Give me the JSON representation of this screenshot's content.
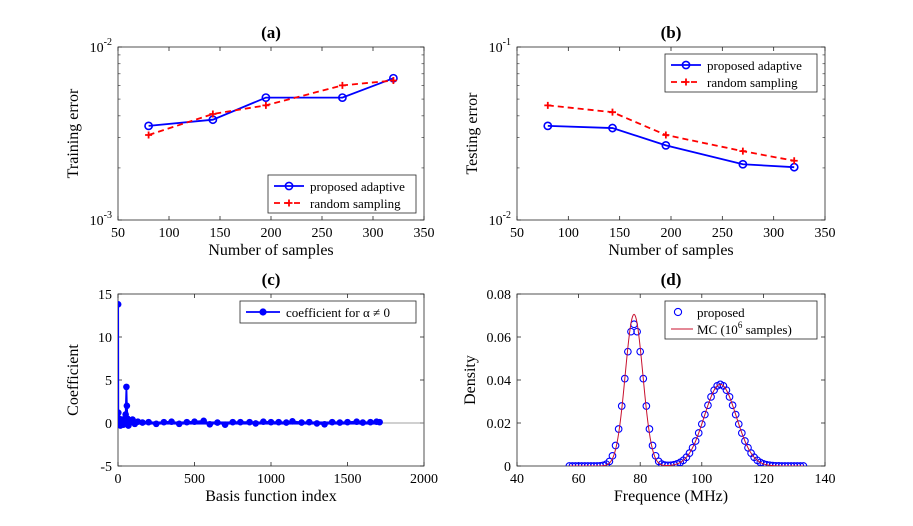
{
  "chart_data": [
    {
      "id": "a",
      "type": "line",
      "title": "(a)",
      "xlabel": "Number of samples",
      "ylabel": "Training error",
      "xlim": [
        50,
        350
      ],
      "ylim": [
        0.001,
        0.01
      ],
      "yscale": "log",
      "xticks": [
        50,
        100,
        150,
        200,
        250,
        300,
        350
      ],
      "yticks": [
        {
          "base": "10",
          "exp": "-3",
          "value": 0.001
        },
        {
          "base": "10",
          "exp": "-2",
          "value": 0.01
        }
      ],
      "legend_position": "bottom-right",
      "series": [
        {
          "name": "proposed adaptive",
          "x": [
            80,
            143,
            195,
            270,
            320
          ],
          "y": [
            0.0035,
            0.0038,
            0.0051,
            0.0051,
            0.0066
          ],
          "color": "#0000ff",
          "style": "solid",
          "marker": "circle"
        },
        {
          "name": "random sampling",
          "x": [
            80,
            143,
            195,
            270,
            320
          ],
          "y": [
            0.0031,
            0.0041,
            0.0046,
            0.006,
            0.0064
          ],
          "color": "#ff0000",
          "style": "dashed",
          "marker": "plus"
        }
      ]
    },
    {
      "id": "b",
      "type": "line",
      "title": "(b)",
      "xlabel": "Number of samples",
      "ylabel": "Testing error",
      "xlim": [
        50,
        350
      ],
      "ylim": [
        0.01,
        0.1
      ],
      "yscale": "log",
      "xticks": [
        50,
        100,
        150,
        200,
        250,
        300,
        350
      ],
      "yticks": [
        {
          "base": "10",
          "exp": "-2",
          "value": 0.01
        },
        {
          "base": "10",
          "exp": "-1",
          "value": 0.1
        }
      ],
      "legend_position": "top-right",
      "series": [
        {
          "name": "proposed adaptive",
          "x": [
            80,
            143,
            195,
            270,
            320
          ],
          "y": [
            0.035,
            0.034,
            0.027,
            0.021,
            0.0202
          ],
          "color": "#0000ff",
          "style": "solid",
          "marker": "circle"
        },
        {
          "name": "random sampling",
          "x": [
            80,
            143,
            195,
            270,
            320
          ],
          "y": [
            0.046,
            0.042,
            0.031,
            0.025,
            0.022
          ],
          "color": "#ff0000",
          "style": "dashed",
          "marker": "plus"
        }
      ]
    },
    {
      "id": "c",
      "type": "scatter",
      "title": "(c)",
      "xlabel": "Basis function index",
      "ylabel": "Coefficient",
      "xlim": [
        0,
        2000
      ],
      "ylim": [
        -5,
        15
      ],
      "xticks": [
        0,
        500,
        1000,
        1500,
        2000
      ],
      "yticks": [
        -5,
        0,
        5,
        10,
        15
      ],
      "legend_position": "top-right",
      "series": [
        {
          "name": "coefficient for α ≠ 0",
          "color": "#0000ff",
          "marker": "filled-circle",
          "x": [
            1,
            2,
            3,
            5,
            8,
            12,
            16,
            22,
            28,
            35,
            42,
            50,
            55,
            58,
            62,
            68,
            75,
            85,
            95,
            110,
            130,
            160,
            200,
            250,
            300,
            350,
            400,
            450,
            500,
            560,
            600,
            650,
            700,
            750,
            800,
            860,
            900,
            950,
            1000,
            1050,
            1100,
            1140,
            1200,
            1250,
            1300,
            1350,
            1400,
            1450,
            1500,
            1560,
            1600,
            1650,
            1690,
            1710
          ],
          "y": [
            13.8,
            1.2,
            0.3,
            -0.2,
            0.5,
            0.2,
            -0.3,
            0.1,
            0.4,
            -0.2,
            0.3,
            1.0,
            4.2,
            2.0,
            0.5,
            -0.3,
            0.3,
            0.1,
            0.4,
            -0.1,
            0.15,
            0.05,
            0.1,
            -0.1,
            0.1,
            0.15,
            -0.1,
            0.1,
            0.15,
            0.25,
            -0.15,
            0.05,
            -0.2,
            0.1,
            0.1,
            0.1,
            -0.05,
            0.15,
            0.1,
            0.1,
            0.05,
            0.2,
            0.05,
            0.1,
            -0.05,
            -0.15,
            0.1,
            0.05,
            0.1,
            0.15,
            0.05,
            0.1,
            0.15,
            0.1
          ]
        }
      ]
    },
    {
      "id": "d",
      "type": "scatter",
      "title": "(d)",
      "xlabel": "Frequence (MHz)",
      "ylabel": "Density",
      "xlim": [
        40,
        140
      ],
      "ylim": [
        0,
        0.08
      ],
      "xticks": [
        40,
        60,
        80,
        100,
        120,
        140
      ],
      "yticks": [
        0,
        0.02,
        0.04,
        0.06,
        0.08
      ],
      "legend_position": "top-right",
      "series": [
        {
          "name": "proposed",
          "color": "#0000ff",
          "marker": "open-circle",
          "x_range": [
            57,
            133
          ],
          "x_step": 1,
          "components": [
            {
              "weight": 0.504,
              "mean": 78,
              "sd": 3.05
            },
            {
              "weight": 0.495,
              "mean": 106,
              "sd": 5.2
            }
          ]
        },
        {
          "name": "MC (10^6 samples)",
          "legend_label": {
            "prefix": "MC (10",
            "sup": "6",
            "suffix": " samples)"
          },
          "color": "#c8102e",
          "style": "solid",
          "x_range": [
            57,
            133
          ],
          "components": [
            {
              "weight": 0.504,
              "mean": 78,
              "sd": 2.85
            },
            {
              "weight": 0.495,
              "mean": 106,
              "sd": 5.2
            }
          ]
        }
      ]
    }
  ]
}
